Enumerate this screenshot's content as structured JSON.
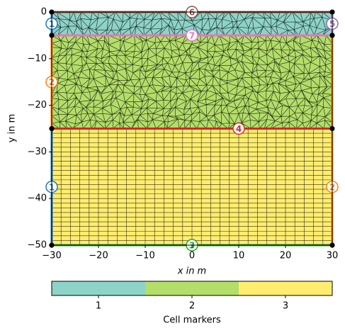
{
  "chart_data": {
    "type": "mesh",
    "xlabel": "x in m",
    "ylabel": "y in m",
    "xlim": [
      -30,
      30
    ],
    "ylim": [
      -50,
      0
    ],
    "xticks": [
      {
        "value": -30,
        "label": "−30"
      },
      {
        "value": -20,
        "label": "−20"
      },
      {
        "value": -10,
        "label": "−10"
      },
      0,
      10,
      20,
      30
    ],
    "yticks": [
      0,
      {
        "value": -10,
        "label": "−10"
      },
      {
        "value": -20,
        "label": "−20"
      },
      {
        "value": -30,
        "label": "−30"
      },
      {
        "value": -40,
        "label": "−40"
      },
      {
        "value": -50,
        "label": "−50"
      }
    ],
    "regions": [
      {
        "marker": 1,
        "color": "#8dd3c7",
        "y": [
          0,
          -5
        ]
      },
      {
        "marker": 2,
        "color": "#b3de69",
        "y": [
          -5,
          -25
        ]
      },
      {
        "marker": 3,
        "color": "#ffed6f",
        "y": [
          -25,
          -50
        ]
      }
    ],
    "boundaries": [
      {
        "marker": 6,
        "color": "#8c564b",
        "x": [
          -30,
          30
        ],
        "y": [
          0,
          0
        ]
      },
      {
        "marker": 7,
        "color": "#e377c2",
        "x": [
          -30,
          30
        ],
        "y": [
          -5,
          -5
        ]
      },
      {
        "marker": 4,
        "color": "#d62728",
        "x": [
          -30,
          -10,
          30
        ],
        "y": [
          -25,
          -25,
          -25
        ]
      },
      {
        "marker": 3,
        "color": "#2ca02c",
        "x": [
          -30,
          30
        ],
        "y": [
          -50,
          -50
        ]
      },
      {
        "marker": 1,
        "color": "#1f77b4",
        "x": [
          -30,
          -30
        ],
        "y": [
          0,
          -5
        ]
      },
      {
        "marker": 2,
        "color": "#ff7f0e",
        "x": [
          -30,
          -30
        ],
        "y": [
          -5,
          -25
        ]
      },
      {
        "marker": 1,
        "color": "#1f77b4",
        "x": [
          -30,
          -30
        ],
        "y": [
          -25,
          -50
        ]
      },
      {
        "marker": 5,
        "color": "#9467bd",
        "x": [
          30,
          30
        ],
        "y": [
          0,
          -5
        ]
      },
      {
        "marker": 2,
        "color": "#ff7f0e",
        "x": [
          30,
          30,
          30
        ],
        "y": [
          -5,
          -25,
          -50
        ]
      }
    ],
    "colorbar_label": "Cell markers"
  }
}
